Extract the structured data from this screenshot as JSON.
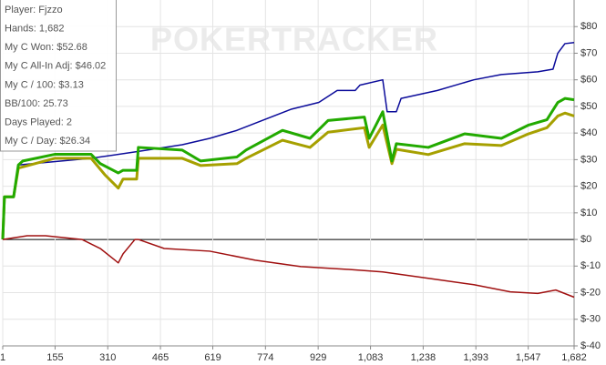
{
  "chart_data": {
    "type": "line",
    "watermark": "POKERTRACKER",
    "info": [
      "Player: Fjzzo",
      "Hands: 1,682",
      "My C Won: $52.68",
      "My C All-In Adj: $46.02",
      "My C / 100: $3.13",
      "BB/100: 25.73",
      "Days Played: 2",
      "My C / Day: $26.34"
    ],
    "xlim": [
      1,
      1682
    ],
    "xticks": [
      1,
      155,
      310,
      465,
      619,
      774,
      929,
      {
        "value": 1083,
        "label": "1,083"
      },
      {
        "value": 1238,
        "label": "1,238"
      },
      {
        "value": 1393,
        "label": "1,393"
      },
      {
        "value": 1547,
        "label": "1,547"
      },
      {
        "value": 1682,
        "label": "1,682"
      }
    ],
    "ylim": [
      -40,
      90
    ],
    "yticks": [
      {
        "value": -40,
        "label": "$-40"
      },
      {
        "value": -30,
        "label": "$-30"
      },
      {
        "value": -20,
        "label": "$-20"
      },
      {
        "value": -10,
        "label": "$-10"
      },
      {
        "value": 0,
        "label": "$0"
      },
      {
        "value": 10,
        "label": "$10"
      },
      {
        "value": 20,
        "label": "$20"
      },
      {
        "value": 30,
        "label": "$30"
      },
      {
        "value": 40,
        "label": "$40"
      },
      {
        "value": 50,
        "label": "$50"
      },
      {
        "value": 60,
        "label": "$60"
      },
      {
        "value": 70,
        "label": "$70"
      },
      {
        "value": 80,
        "label": "$80"
      }
    ],
    "grid": true,
    "series": [
      {
        "color": "#0b0b9a",
        "width": 1.5,
        "x": [
          1,
          6,
          33,
          47,
          261,
          395,
          529,
          610,
          690,
          770,
          851,
          931,
          985,
          1038,
          1052,
          1119,
          1132,
          1159,
          1173,
          1280,
          1333,
          1387,
          1468,
          1575,
          1620,
          1634,
          1655,
          1682
        ],
        "values": [
          0,
          16,
          16,
          28,
          30.5,
          33,
          35.6,
          38,
          41,
          45,
          49,
          51.5,
          56,
          56,
          58,
          60,
          48,
          48,
          53,
          56,
          58,
          60,
          62,
          63,
          64,
          70,
          73.6,
          74
        ]
      },
      {
        "color": "#a6a000",
        "width": 3,
        "x": [
          1,
          6,
          33,
          47,
          154,
          261,
          301,
          341,
          355,
          395,
          400,
          529,
          583,
          690,
          717,
          824,
          905,
          958,
          1065,
          1079,
          1119,
          1146,
          1159,
          1253,
          1360,
          1468,
          1548,
          1602,
          1634,
          1655,
          1682
        ],
        "values": [
          0,
          16,
          16,
          26.8,
          30.5,
          30.5,
          24.4,
          19.3,
          22.7,
          22.7,
          30.5,
          30.5,
          27.8,
          28.5,
          30.5,
          37.3,
          34.6,
          40.3,
          42,
          34.6,
          43,
          28.5,
          33.9,
          31.9,
          36,
          35.3,
          39.7,
          42,
          46.4,
          47.5,
          46.4
        ]
      },
      {
        "color": "#22aa00",
        "width": 3,
        "x": [
          1,
          6,
          33,
          47,
          60,
          154,
          261,
          288,
          341,
          355,
          395,
          400,
          529,
          583,
          690,
          717,
          824,
          905,
          958,
          1065,
          1079,
          1119,
          1146,
          1159,
          1253,
          1360,
          1468,
          1548,
          1602,
          1634,
          1655,
          1682
        ],
        "values": [
          0,
          16,
          16,
          28,
          29.5,
          32,
          32,
          28.5,
          25,
          26,
          26,
          34.6,
          33.6,
          29.5,
          31,
          33.6,
          41,
          38,
          44.7,
          46,
          38,
          48,
          29.5,
          36,
          34.6,
          39.7,
          38,
          43,
          45,
          51.5,
          53,
          52.5
        ]
      },
      {
        "color": "#a01010",
        "width": 1.5,
        "x": [
          1,
          73,
          127,
          234,
          288,
          341,
          355,
          390,
          400,
          476,
          610,
          744,
          878,
          1012,
          1119,
          1253,
          1387,
          1494,
          1575,
          1628,
          1682
        ],
        "values": [
          0,
          1.4,
          1.4,
          0,
          -3.4,
          -8.8,
          -5.4,
          0,
          0,
          -3.4,
          -4.4,
          -7.8,
          -10.2,
          -11.2,
          -12.2,
          -14.6,
          -17,
          -19.7,
          -20.3,
          -19,
          -21.7
        ]
      }
    ]
  }
}
